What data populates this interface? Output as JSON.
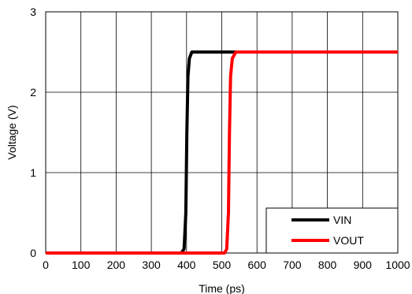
{
  "chart_data": {
    "type": "line",
    "title": "",
    "xlabel": "Time (ps)",
    "ylabel": "Voltage (V)",
    "xlim": [
      0,
      1000
    ],
    "ylim": [
      0,
      3
    ],
    "x_ticks": [
      0,
      100,
      200,
      300,
      400,
      500,
      600,
      700,
      800,
      900,
      1000
    ],
    "y_ticks": [
      0,
      1,
      2,
      3
    ],
    "grid": true,
    "legend_position": "bottom-right",
    "series": [
      {
        "name": "VIN",
        "color": "#000000",
        "points": [
          [
            0,
            0.0
          ],
          [
            385,
            0.0
          ],
          [
            393,
            0.05
          ],
          [
            398,
            0.5
          ],
          [
            401,
            1.5
          ],
          [
            404,
            2.2
          ],
          [
            408,
            2.42
          ],
          [
            415,
            2.5
          ],
          [
            1000,
            2.5
          ]
        ]
      },
      {
        "name": "VOUT",
        "color": "#ff0000",
        "points": [
          [
            0,
            0.0
          ],
          [
            508,
            0.0
          ],
          [
            514,
            0.05
          ],
          [
            519,
            0.5
          ],
          [
            522,
            1.5
          ],
          [
            525,
            2.2
          ],
          [
            530,
            2.42
          ],
          [
            540,
            2.5
          ],
          [
            1000,
            2.5
          ]
        ]
      }
    ]
  }
}
